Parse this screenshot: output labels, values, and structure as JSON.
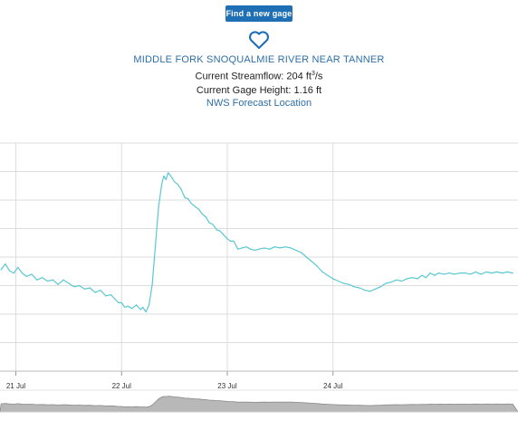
{
  "header": {
    "find_button_label": "Find a new gage",
    "favorite_icon": "heart-outline-icon",
    "station_name": "MIDDLE FORK SNOQUALMIE RIVER NEAR TANNER",
    "streamflow_label": "Current Streamflow: ",
    "streamflow_value": "204",
    "streamflow_unit": "ft",
    "streamflow_unit_exp": "3",
    "streamflow_unit_suffix": "/s",
    "gage_height_text": "Current Gage Height: 1.16 ft",
    "forecast_link": "NWS Forecast Location"
  },
  "colors": {
    "accent": "#1f6fb5",
    "link": "#2d6fa8",
    "series_line": "#5bc8d1",
    "grid": "#dddddd",
    "navigator_fill": "#b8b8b8"
  },
  "chart_data": {
    "type": "line",
    "x_tick_labels": [
      "21 Jul",
      "22 Jul",
      "23 Jul",
      "24 Jul"
    ],
    "x_tick_days": [
      21,
      22,
      23,
      24
    ],
    "xlim": [
      20.85,
      25.75
    ],
    "ylim": [
      0,
      1
    ],
    "grid": true,
    "series": [
      {
        "values": [
          [
            20.86,
            0.445
          ],
          [
            20.9,
            0.47
          ],
          [
            20.94,
            0.44
          ],
          [
            20.98,
            0.43
          ],
          [
            21.02,
            0.455
          ],
          [
            21.06,
            0.43
          ],
          [
            21.1,
            0.415
          ],
          [
            21.15,
            0.425
          ],
          [
            21.2,
            0.4
          ],
          [
            21.25,
            0.41
          ],
          [
            21.3,
            0.395
          ],
          [
            21.35,
            0.4
          ],
          [
            21.4,
            0.38
          ],
          [
            21.45,
            0.4
          ],
          [
            21.5,
            0.385
          ],
          [
            21.55,
            0.37
          ],
          [
            21.6,
            0.375
          ],
          [
            21.65,
            0.36
          ],
          [
            21.7,
            0.365
          ],
          [
            21.75,
            0.345
          ],
          [
            21.8,
            0.355
          ],
          [
            21.85,
            0.33
          ],
          [
            21.9,
            0.335
          ],
          [
            21.94,
            0.315
          ],
          [
            21.97,
            0.3
          ],
          [
            22.0,
            0.3
          ],
          [
            22.03,
            0.28
          ],
          [
            22.06,
            0.285
          ],
          [
            22.1,
            0.275
          ],
          [
            22.14,
            0.29
          ],
          [
            22.18,
            0.27
          ],
          [
            22.2,
            0.28
          ],
          [
            22.23,
            0.26
          ],
          [
            22.26,
            0.29
          ],
          [
            22.29,
            0.38
          ],
          [
            22.32,
            0.55
          ],
          [
            22.35,
            0.72
          ],
          [
            22.38,
            0.82
          ],
          [
            22.4,
            0.855
          ],
          [
            22.42,
            0.84
          ],
          [
            22.44,
            0.87
          ],
          [
            22.46,
            0.86
          ],
          [
            22.5,
            0.83
          ],
          [
            22.53,
            0.82
          ],
          [
            22.56,
            0.8
          ],
          [
            22.6,
            0.76
          ],
          [
            22.63,
            0.755
          ],
          [
            22.66,
            0.735
          ],
          [
            22.7,
            0.72
          ],
          [
            22.73,
            0.71
          ],
          [
            22.76,
            0.69
          ],
          [
            22.8,
            0.675
          ],
          [
            22.83,
            0.65
          ],
          [
            22.86,
            0.645
          ],
          [
            22.9,
            0.62
          ],
          [
            22.93,
            0.615
          ],
          [
            22.96,
            0.6
          ],
          [
            23.0,
            0.58
          ],
          [
            23.03,
            0.57
          ],
          [
            23.06,
            0.57
          ],
          [
            23.1,
            0.535
          ],
          [
            23.14,
            0.54
          ],
          [
            23.18,
            0.545
          ],
          [
            23.22,
            0.535
          ],
          [
            23.26,
            0.53
          ],
          [
            23.3,
            0.535
          ],
          [
            23.35,
            0.54
          ],
          [
            23.4,
            0.535
          ],
          [
            23.45,
            0.545
          ],
          [
            23.5,
            0.54
          ],
          [
            23.55,
            0.545
          ],
          [
            23.6,
            0.54
          ],
          [
            23.65,
            0.53
          ],
          [
            23.7,
            0.52
          ],
          [
            23.75,
            0.5
          ],
          [
            23.8,
            0.48
          ],
          [
            23.85,
            0.46
          ],
          [
            23.9,
            0.435
          ],
          [
            23.95,
            0.42
          ],
          [
            24.0,
            0.405
          ],
          [
            24.05,
            0.395
          ],
          [
            24.1,
            0.385
          ],
          [
            24.15,
            0.38
          ],
          [
            24.2,
            0.37
          ],
          [
            24.25,
            0.365
          ],
          [
            24.3,
            0.355
          ],
          [
            24.35,
            0.35
          ],
          [
            24.4,
            0.36
          ],
          [
            24.45,
            0.37
          ],
          [
            24.5,
            0.385
          ],
          [
            24.55,
            0.39
          ],
          [
            24.6,
            0.4
          ],
          [
            24.65,
            0.395
          ],
          [
            24.7,
            0.405
          ],
          [
            24.75,
            0.41
          ],
          [
            24.8,
            0.405
          ],
          [
            24.84,
            0.42
          ],
          [
            24.88,
            0.41
          ],
          [
            24.92,
            0.43
          ],
          [
            24.96,
            0.42
          ],
          [
            25.0,
            0.43
          ],
          [
            25.05,
            0.425
          ],
          [
            25.1,
            0.43
          ],
          [
            25.15,
            0.425
          ],
          [
            25.2,
            0.43
          ],
          [
            25.25,
            0.43
          ],
          [
            25.3,
            0.425
          ],
          [
            25.35,
            0.435
          ],
          [
            25.4,
            0.425
          ],
          [
            25.45,
            0.435
          ],
          [
            25.5,
            0.43
          ],
          [
            25.55,
            0.435
          ],
          [
            25.6,
            0.43
          ],
          [
            25.65,
            0.435
          ],
          [
            25.7,
            0.43
          ]
        ]
      }
    ]
  }
}
